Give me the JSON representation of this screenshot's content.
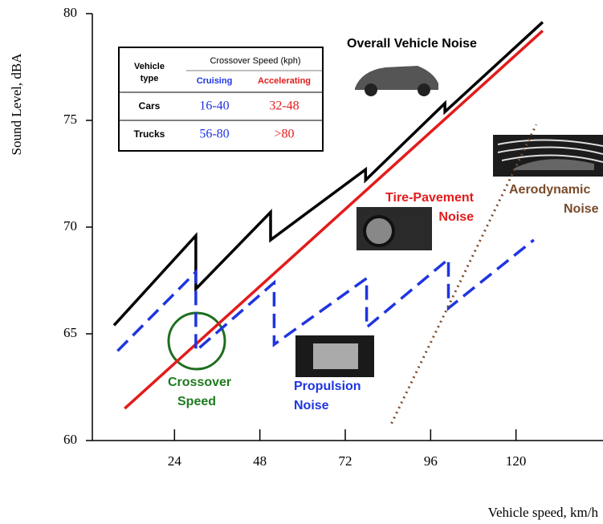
{
  "chart_data": {
    "type": "line",
    "ylabel": "Sound Level, dBA",
    "xlabel": "Vehicle speed, km/h",
    "xlim": [
      0,
      144
    ],
    "ylim": [
      60,
      80
    ],
    "xticks": [
      24,
      48,
      72,
      96,
      120
    ],
    "yticks": [
      60,
      65,
      70,
      75,
      80
    ],
    "series": [
      {
        "color": "#000000",
        "style": "solid",
        "x": [
          7,
          30,
          30,
          51,
          51,
          77.7,
          77.7,
          100,
          100,
          127.5
        ],
        "values": [
          65.4,
          69.6,
          67.1,
          70.7,
          69.4,
          72.7,
          72.2,
          75.8,
          75.4,
          79.6
        ]
      },
      {
        "color": "#e31b1b",
        "style": "solid",
        "x": [
          10,
          127.5
        ],
        "values": [
          61.5,
          79.2
        ]
      },
      {
        "color": "#1f35e0",
        "style": "dashed",
        "x": [
          8,
          30,
          30,
          52,
          52,
          78,
          78,
          101,
          101,
          125
        ],
        "values": [
          64.2,
          67.9,
          64.2,
          67.4,
          64.5,
          67.6,
          65.3,
          68.5,
          66.2,
          69.4
        ]
      },
      {
        "color": "#7a4a2a",
        "style": "dotted",
        "x": [
          85,
          125.7
        ],
        "values": [
          60.8,
          74.8
        ]
      }
    ],
    "annotations": [
      {
        "lines": [
          "Overall Vehicle Noise"
        ],
        "color": "#000000"
      },
      {
        "lines": [
          "Tire-Pavement",
          "Noise"
        ],
        "color": "#e31b1b"
      },
      {
        "lines": [
          "Aerodynamic",
          "Noise"
        ],
        "color": "#7a4a2a"
      },
      {
        "lines": [
          "Crossover",
          "Speed"
        ],
        "color": "#1e7a1e"
      },
      {
        "lines": [
          "Propulsion",
          "Noise"
        ],
        "color": "#1f35e0"
      }
    ]
  },
  "table": {
    "header": {
      "vehicle": [
        "Vehicle",
        "type"
      ],
      "group": "Crossover Speed (kph)",
      "cruising": "Cruising",
      "accelerating": "Accelerating"
    },
    "rows": [
      [
        "Cars",
        "16-40",
        "32-48"
      ],
      [
        "Trucks",
        "56-80",
        ">80"
      ]
    ]
  }
}
